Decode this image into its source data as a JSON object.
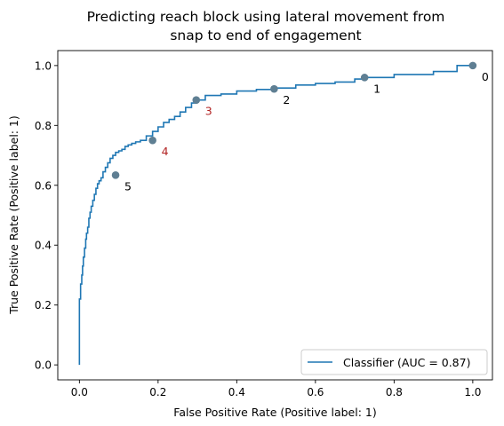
{
  "chart_data": {
    "type": "line",
    "title_lines": [
      "Predicting reach block using lateral movement from",
      "snap to end of engagement"
    ],
    "xlabel": "False Positive Rate (Positive label: 1)",
    "ylabel": "True Positive Rate (Positive label: 1)",
    "xlim": [
      -0.055,
      1.05
    ],
    "ylim": [
      -0.05,
      1.05
    ],
    "xticks": [
      0.0,
      0.2,
      0.4,
      0.6,
      0.8,
      1.0
    ],
    "xtick_labels": [
      "0.0",
      "0.2",
      "0.4",
      "0.6",
      "0.8",
      "1.0"
    ],
    "yticks": [
      0.0,
      0.2,
      0.4,
      0.6,
      0.8,
      1.0
    ],
    "ytick_labels": [
      "0.0",
      "0.2",
      "0.4",
      "0.6",
      "0.8",
      "1.0"
    ],
    "grid": false,
    "legend_position": "lower-right",
    "series": [
      {
        "name": "Classifier (AUC = 0.87)",
        "color": "#1f77b4",
        "x": [
          0.0,
          0.0,
          0.003,
          0.003,
          0.006,
          0.006,
          0.008,
          0.008,
          0.01,
          0.01,
          0.013,
          0.013,
          0.016,
          0.016,
          0.018,
          0.018,
          0.021,
          0.021,
          0.024,
          0.024,
          0.027,
          0.027,
          0.03,
          0.03,
          0.034,
          0.034,
          0.038,
          0.038,
          0.042,
          0.042,
          0.046,
          0.046,
          0.05,
          0.05,
          0.055,
          0.055,
          0.06,
          0.06,
          0.066,
          0.066,
          0.072,
          0.072,
          0.078,
          0.078,
          0.085,
          0.085,
          0.092,
          0.092,
          0.1,
          0.1,
          0.108,
          0.108,
          0.116,
          0.116,
          0.124,
          0.124,
          0.133,
          0.133,
          0.143,
          0.143,
          0.155,
          0.155,
          0.17,
          0.17,
          0.186,
          0.186,
          0.2,
          0.2,
          0.214,
          0.214,
          0.228,
          0.228,
          0.242,
          0.242,
          0.256,
          0.256,
          0.27,
          0.27,
          0.285,
          0.285,
          0.297,
          0.297,
          0.32,
          0.32,
          0.36,
          0.36,
          0.4,
          0.4,
          0.45,
          0.45,
          0.495,
          0.495,
          0.55,
          0.55,
          0.6,
          0.6,
          0.65,
          0.65,
          0.7,
          0.7,
          0.725,
          0.725,
          0.8,
          0.8,
          0.9,
          0.9,
          0.96,
          0.96,
          1.0
        ],
        "y": [
          0.0,
          0.22,
          0.22,
          0.27,
          0.27,
          0.3,
          0.3,
          0.33,
          0.33,
          0.36,
          0.36,
          0.39,
          0.39,
          0.42,
          0.42,
          0.44,
          0.44,
          0.46,
          0.46,
          0.49,
          0.49,
          0.51,
          0.51,
          0.53,
          0.53,
          0.55,
          0.55,
          0.57,
          0.57,
          0.59,
          0.59,
          0.605,
          0.605,
          0.615,
          0.615,
          0.625,
          0.625,
          0.645,
          0.645,
          0.66,
          0.66,
          0.675,
          0.675,
          0.69,
          0.69,
          0.7,
          0.7,
          0.71,
          0.71,
          0.715,
          0.715,
          0.72,
          0.72,
          0.73,
          0.73,
          0.735,
          0.735,
          0.74,
          0.74,
          0.745,
          0.745,
          0.75,
          0.75,
          0.765,
          0.765,
          0.78,
          0.78,
          0.795,
          0.795,
          0.81,
          0.81,
          0.82,
          0.82,
          0.83,
          0.83,
          0.845,
          0.845,
          0.86,
          0.86,
          0.875,
          0.875,
          0.885,
          0.885,
          0.9,
          0.9,
          0.905,
          0.905,
          0.915,
          0.915,
          0.92,
          0.92,
          0.925,
          0.925,
          0.935,
          0.935,
          0.94,
          0.94,
          0.945,
          0.945,
          0.955,
          0.955,
          0.96,
          0.96,
          0.97,
          0.97,
          0.98,
          0.98,
          1.0,
          1.0
        ]
      }
    ],
    "highlighted_points": [
      {
        "label": "0",
        "x": 1.0,
        "y": 1.0,
        "label_color": "#000000"
      },
      {
        "label": "1",
        "x": 0.725,
        "y": 0.96,
        "label_color": "#000000"
      },
      {
        "label": "2",
        "x": 0.495,
        "y": 0.922,
        "label_color": "#000000"
      },
      {
        "label": "3",
        "x": 0.297,
        "y": 0.885,
        "label_color": "#b22222"
      },
      {
        "label": "4",
        "x": 0.186,
        "y": 0.75,
        "label_color": "#b22222"
      },
      {
        "label": "5",
        "x": 0.092,
        "y": 0.634,
        "label_color": "#000000"
      }
    ],
    "marker_color": "#5f7f93"
  }
}
